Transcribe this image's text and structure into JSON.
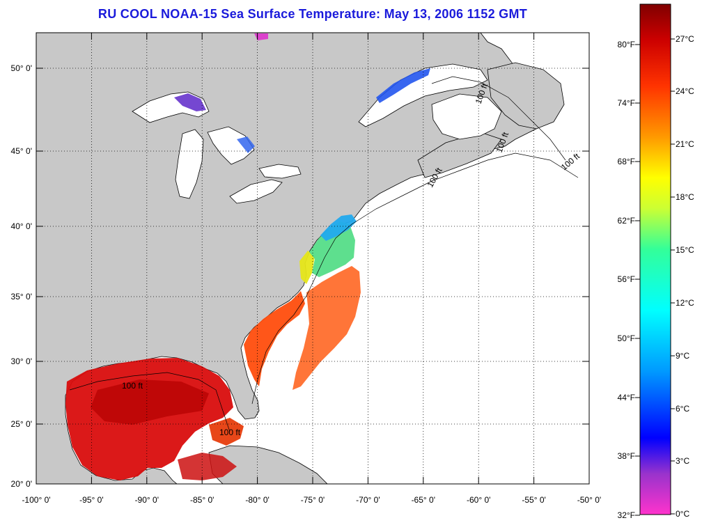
{
  "title": "RU COOL  NOAA-15  Sea Surface Temperature:  May 13, 2006 1152 GMT",
  "map": {
    "lon_labels": [
      "-100° 0'",
      "-95° 0'",
      "-90° 0'",
      "-85° 0'",
      "-80° 0'",
      "-75° 0'",
      "-70° 0'",
      "-65° 0'",
      "-60° 0'",
      "-55° 0'",
      "-50° 0'"
    ],
    "lat_labels": [
      "50° 0'",
      "45° 0'",
      "40° 0'",
      "35° 0'",
      "30° 0'",
      "25° 0'",
      "20° 0'"
    ],
    "lon_values": [
      -100,
      -95,
      -90,
      -85,
      -80,
      -75,
      -70,
      -65,
      -60,
      -55,
      -50
    ],
    "lat_values": [
      50,
      45,
      40,
      35,
      30,
      25,
      20
    ],
    "land_color": "#c8c8c8",
    "water_color": "#ffffff",
    "isobath_label": "100 ft"
  },
  "colorbar": {
    "fahrenheit_labels": [
      "80°F",
      "74°F",
      "68°F",
      "62°F",
      "56°F",
      "50°F",
      "44°F",
      "38°F",
      "32°F"
    ],
    "celsius_labels": [
      "27°C",
      "24°C",
      "21°C",
      "18°C",
      "15°C",
      "12°C",
      "9°C",
      "6°C",
      "3°C",
      "0°C"
    ],
    "colors": [
      "#ff33cc",
      "#9933cc",
      "#0000ff",
      "#0099ff",
      "#00ffff",
      "#33ff99",
      "#ccff33",
      "#ffff00",
      "#ff9900",
      "#ff3300",
      "#cc0000",
      "#800000"
    ]
  }
}
